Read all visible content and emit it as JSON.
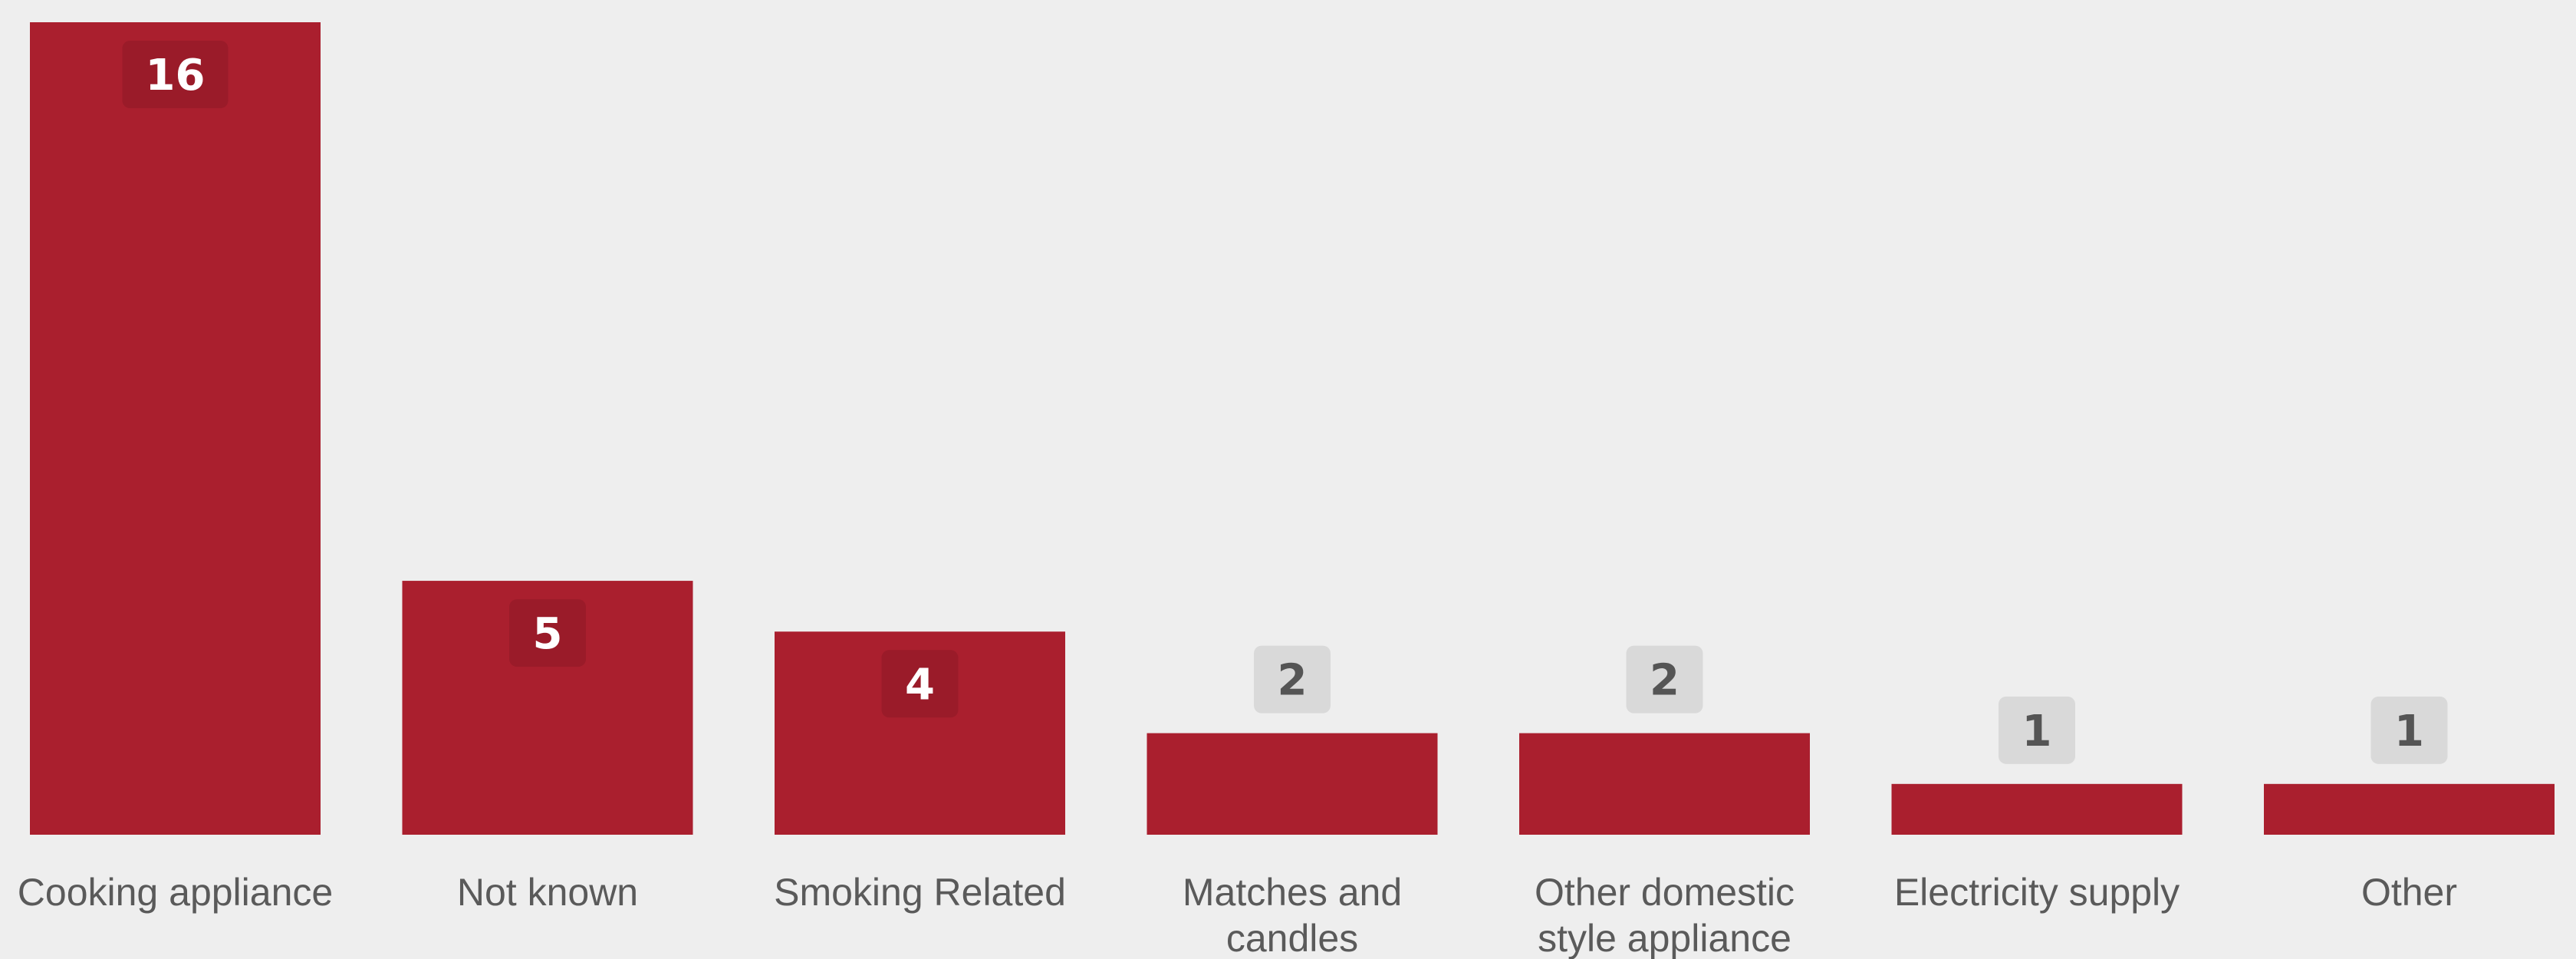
{
  "chart_data": {
    "type": "bar",
    "categories": [
      [
        "Cooking appliance"
      ],
      [
        "Not known"
      ],
      [
        "Smoking Related"
      ],
      [
        "Matches and",
        "candles"
      ],
      [
        "Other domestic",
        "style appliance"
      ],
      [
        "Electricity supply"
      ],
      [
        "Other"
      ]
    ],
    "values": [
      16,
      5,
      4,
      2,
      2,
      1,
      1
    ],
    "title": "",
    "xlabel": "",
    "ylabel": "",
    "ylim": [
      0,
      16
    ],
    "grid": false,
    "legend": "none",
    "colors": {
      "bar": "#aa1f2e",
      "background": "#eeeeee",
      "label_text": "#5a5a5a",
      "badge_bg": "#d9d9d9",
      "badge_text": "#555555",
      "badge_inside_bg": "#9a1b29",
      "badge_inside_text": "#ffffff"
    }
  }
}
